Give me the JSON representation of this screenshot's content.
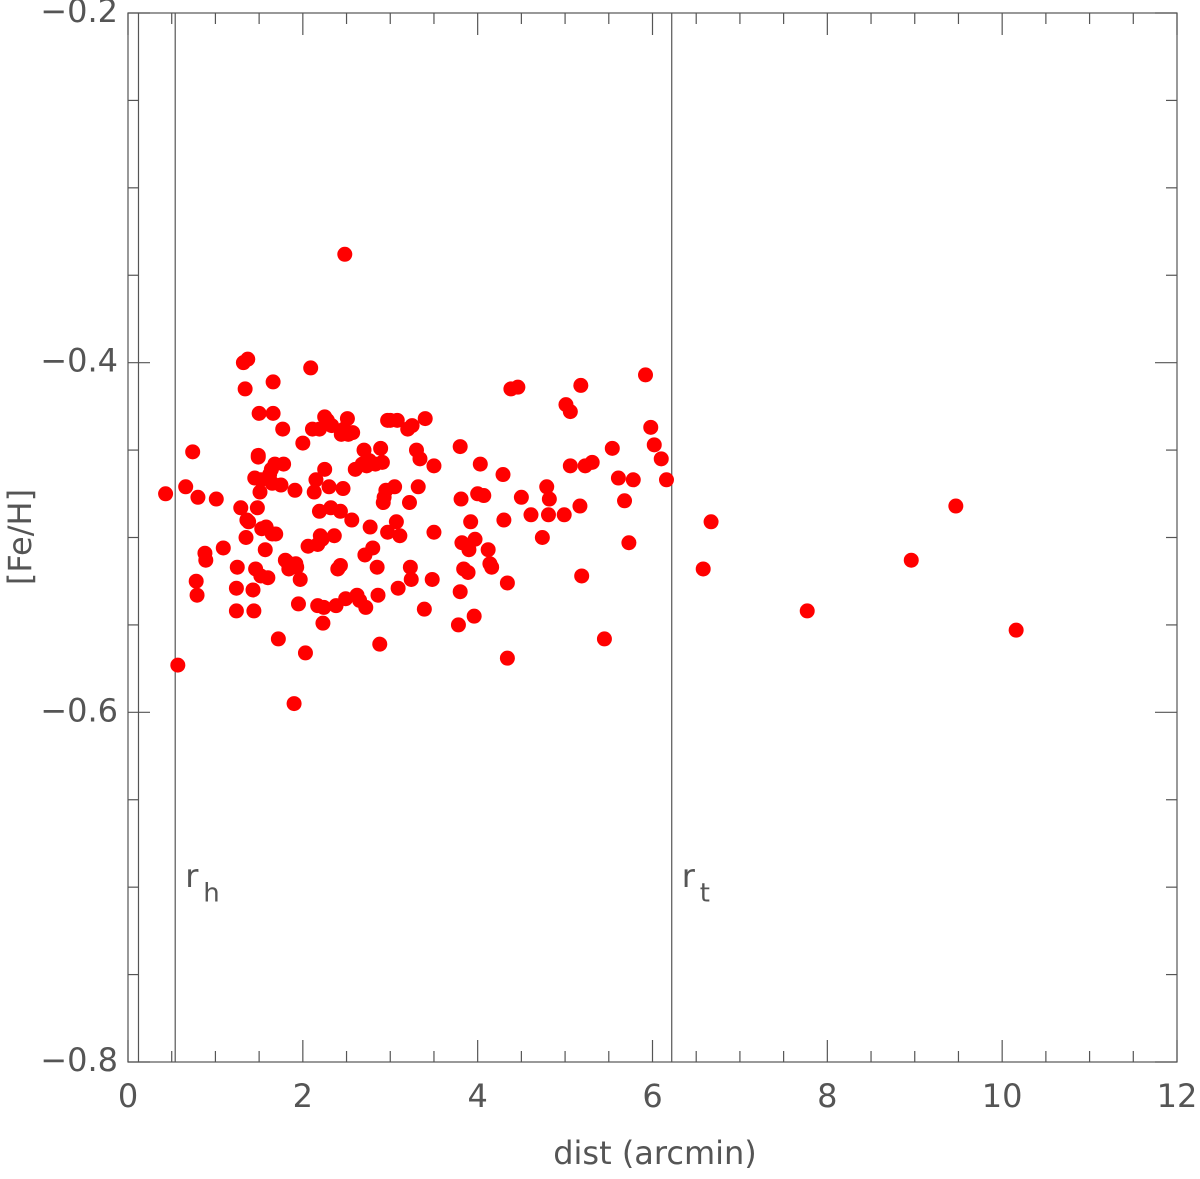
{
  "chart_data": {
    "type": "scatter",
    "x_label": "dist (arcmin)",
    "y_label": "[Fe/H]",
    "color": "#ff0000",
    "xlim": [
      0,
      12
    ],
    "ylim": [
      -0.8,
      -0.2
    ],
    "xticks": [
      0,
      2,
      4,
      6,
      8,
      10,
      12
    ],
    "yticks": [
      {
        "value": -0.8,
        "label": "−0.8"
      },
      {
        "value": -0.6,
        "label": "−0.6"
      },
      {
        "value": -0.4,
        "label": "−0.4"
      },
      {
        "value": -0.2,
        "label": "−0.2"
      }
    ],
    "xminorticks": [
      0.5,
      1,
      1.5,
      2.5,
      3,
      3.5,
      4.5,
      5,
      5.5,
      6.5,
      7,
      7.5,
      8.5,
      9,
      9.5,
      10.5,
      11,
      11.5
    ],
    "yminorticks": [
      -0.75,
      -0.7,
      -0.65,
      -0.55,
      -0.5,
      -0.45,
      -0.35,
      -0.3,
      -0.25
    ],
    "reference_lines": [
      {
        "x": 0.12
      },
      {
        "x": 0.54,
        "label": "r",
        "subscript": "h"
      },
      {
        "x": 6.22,
        "label": "r",
        "subscript": "t"
      }
    ],
    "x": [
      0.43,
      0.57,
      0.66,
      0.74,
      0.8,
      0.78,
      0.79,
      0.88,
      0.89,
      1.01,
      1.09,
      1.24,
      1.24,
      1.25,
      1.29,
      1.32,
      1.34,
      1.35,
      1.36,
      1.37,
      1.38,
      1.43,
      1.44,
      1.45,
      1.46,
      1.48,
      1.49,
      1.49,
      1.5,
      1.51,
      1.52,
      1.52,
      1.53,
      1.57,
      1.58,
      1.6,
      1.62,
      1.64,
      1.65,
      1.65,
      1.66,
      1.66,
      1.68,
      1.69,
      1.72,
      1.75,
      1.77,
      1.78,
      1.8,
      1.82,
      1.84,
      1.9,
      1.91,
      1.92,
      1.93,
      1.95,
      1.97,
      2.0,
      2.03,
      2.06,
      2.09,
      2.11,
      2.13,
      2.15,
      2.17,
      2.17,
      2.19,
      2.19,
      2.2,
      2.22,
      2.23,
      2.24,
      2.25,
      2.25,
      2.28,
      2.3,
      2.32,
      2.33,
      2.36,
      2.38,
      2.4,
      2.43,
      2.43,
      2.44,
      2.46,
      2.47,
      2.48,
      2.49,
      2.51,
      2.52,
      2.56,
      2.57,
      2.6,
      2.62,
      2.65,
      2.68,
      2.7,
      2.71,
      2.72,
      2.73,
      2.76,
      2.77,
      2.8,
      2.83,
      2.85,
      2.86,
      2.88,
      2.89,
      2.91,
      2.92,
      2.93,
      2.95,
      2.97,
      2.97,
      3.0,
      3.05,
      3.08,
      3.07,
      3.09,
      3.11,
      3.2,
      3.22,
      3.23,
      3.24,
      3.25,
      3.3,
      3.32,
      3.34,
      3.39,
      3.4,
      3.48,
      3.5,
      3.5,
      3.78,
      3.8,
      3.8,
      3.81,
      3.82,
      3.84,
      3.89,
      3.9,
      3.92,
      3.96,
      3.97,
      4.0,
      4.03,
      4.07,
      4.12,
      4.14,
      4.16,
      4.29,
      4.3,
      4.34,
      4.34,
      4.38,
      4.46,
      4.5,
      4.61,
      4.74,
      4.79,
      4.81,
      4.82,
      4.99,
      5.01,
      5.06,
      5.06,
      5.17,
      5.18,
      5.19,
      5.23,
      5.31,
      5.45,
      5.54,
      5.61,
      5.68,
      5.73,
      5.78,
      5.92,
      5.98,
      6.02,
      6.1,
      6.16,
      6.58,
      6.67,
      7.77,
      8.96,
      9.47,
      10.16
    ],
    "values": [
      -0.475,
      -0.573,
      -0.471,
      -0.451,
      -0.477,
      -0.525,
      -0.533,
      -0.509,
      -0.513,
      -0.478,
      -0.506,
      -0.542,
      -0.529,
      -0.517,
      -0.483,
      -0.4,
      -0.415,
      -0.5,
      -0.49,
      -0.398,
      -0.491,
      -0.53,
      -0.542,
      -0.466,
      -0.518,
      -0.483,
      -0.453,
      -0.454,
      -0.429,
      -0.474,
      -0.522,
      -0.467,
      -0.495,
      -0.507,
      -0.494,
      -0.523,
      -0.464,
      -0.461,
      -0.498,
      -0.469,
      -0.411,
      -0.429,
      -0.458,
      -0.498,
      -0.558,
      -0.47,
      -0.438,
      -0.458,
      -0.513,
      -0.514,
      -0.518,
      -0.595,
      -0.473,
      -0.515,
      -0.517,
      -0.538,
      -0.524,
      -0.446,
      -0.566,
      -0.505,
      -0.403,
      -0.438,
      -0.474,
      -0.467,
      -0.539,
      -0.504,
      -0.438,
      -0.485,
      -0.499,
      -0.501,
      -0.549,
      -0.54,
      -0.461,
      -0.431,
      -0.433,
      -0.471,
      -0.483,
      -0.436,
      -0.499,
      -0.539,
      -0.518,
      -0.485,
      -0.516,
      -0.441,
      -0.472,
      -0.438,
      -0.338,
      -0.535,
      -0.432,
      -0.441,
      -0.49,
      -0.44,
      -0.461,
      -0.533,
      -0.536,
      -0.458,
      -0.45,
      -0.51,
      -0.54,
      -0.459,
      -0.456,
      -0.494,
      -0.506,
      -0.458,
      -0.517,
      -0.533,
      -0.561,
      -0.449,
      -0.457,
      -0.48,
      -0.477,
      -0.473,
      -0.433,
      -0.497,
      -0.433,
      -0.471,
      -0.433,
      -0.491,
      -0.529,
      -0.499,
      -0.438,
      -0.48,
      -0.517,
      -0.524,
      -0.436,
      -0.45,
      -0.471,
      -0.455,
      -0.541,
      -0.432,
      -0.524,
      -0.497,
      -0.459,
      -0.55,
      -0.531,
      -0.448,
      -0.478,
      -0.503,
      -0.518,
      -0.52,
      -0.507,
      -0.491,
      -0.545,
      -0.501,
      -0.475,
      -0.458,
      -0.476,
      -0.507,
      -0.515,
      -0.517,
      -0.464,
      -0.49,
      -0.569,
      -0.526,
      -0.415,
      -0.414,
      -0.477,
      -0.487,
      -0.5,
      -0.471,
      -0.487,
      -0.478,
      -0.487,
      -0.424,
      -0.428,
      -0.459,
      -0.482,
      -0.413,
      -0.522,
      -0.459,
      -0.457,
      -0.558,
      -0.449,
      -0.466,
      -0.479,
      -0.503,
      -0.467,
      -0.407,
      -0.437,
      -0.447,
      -0.455,
      -0.467,
      -0.518,
      -0.491,
      -0.542,
      -0.513,
      -0.482,
      -0.553
    ]
  }
}
